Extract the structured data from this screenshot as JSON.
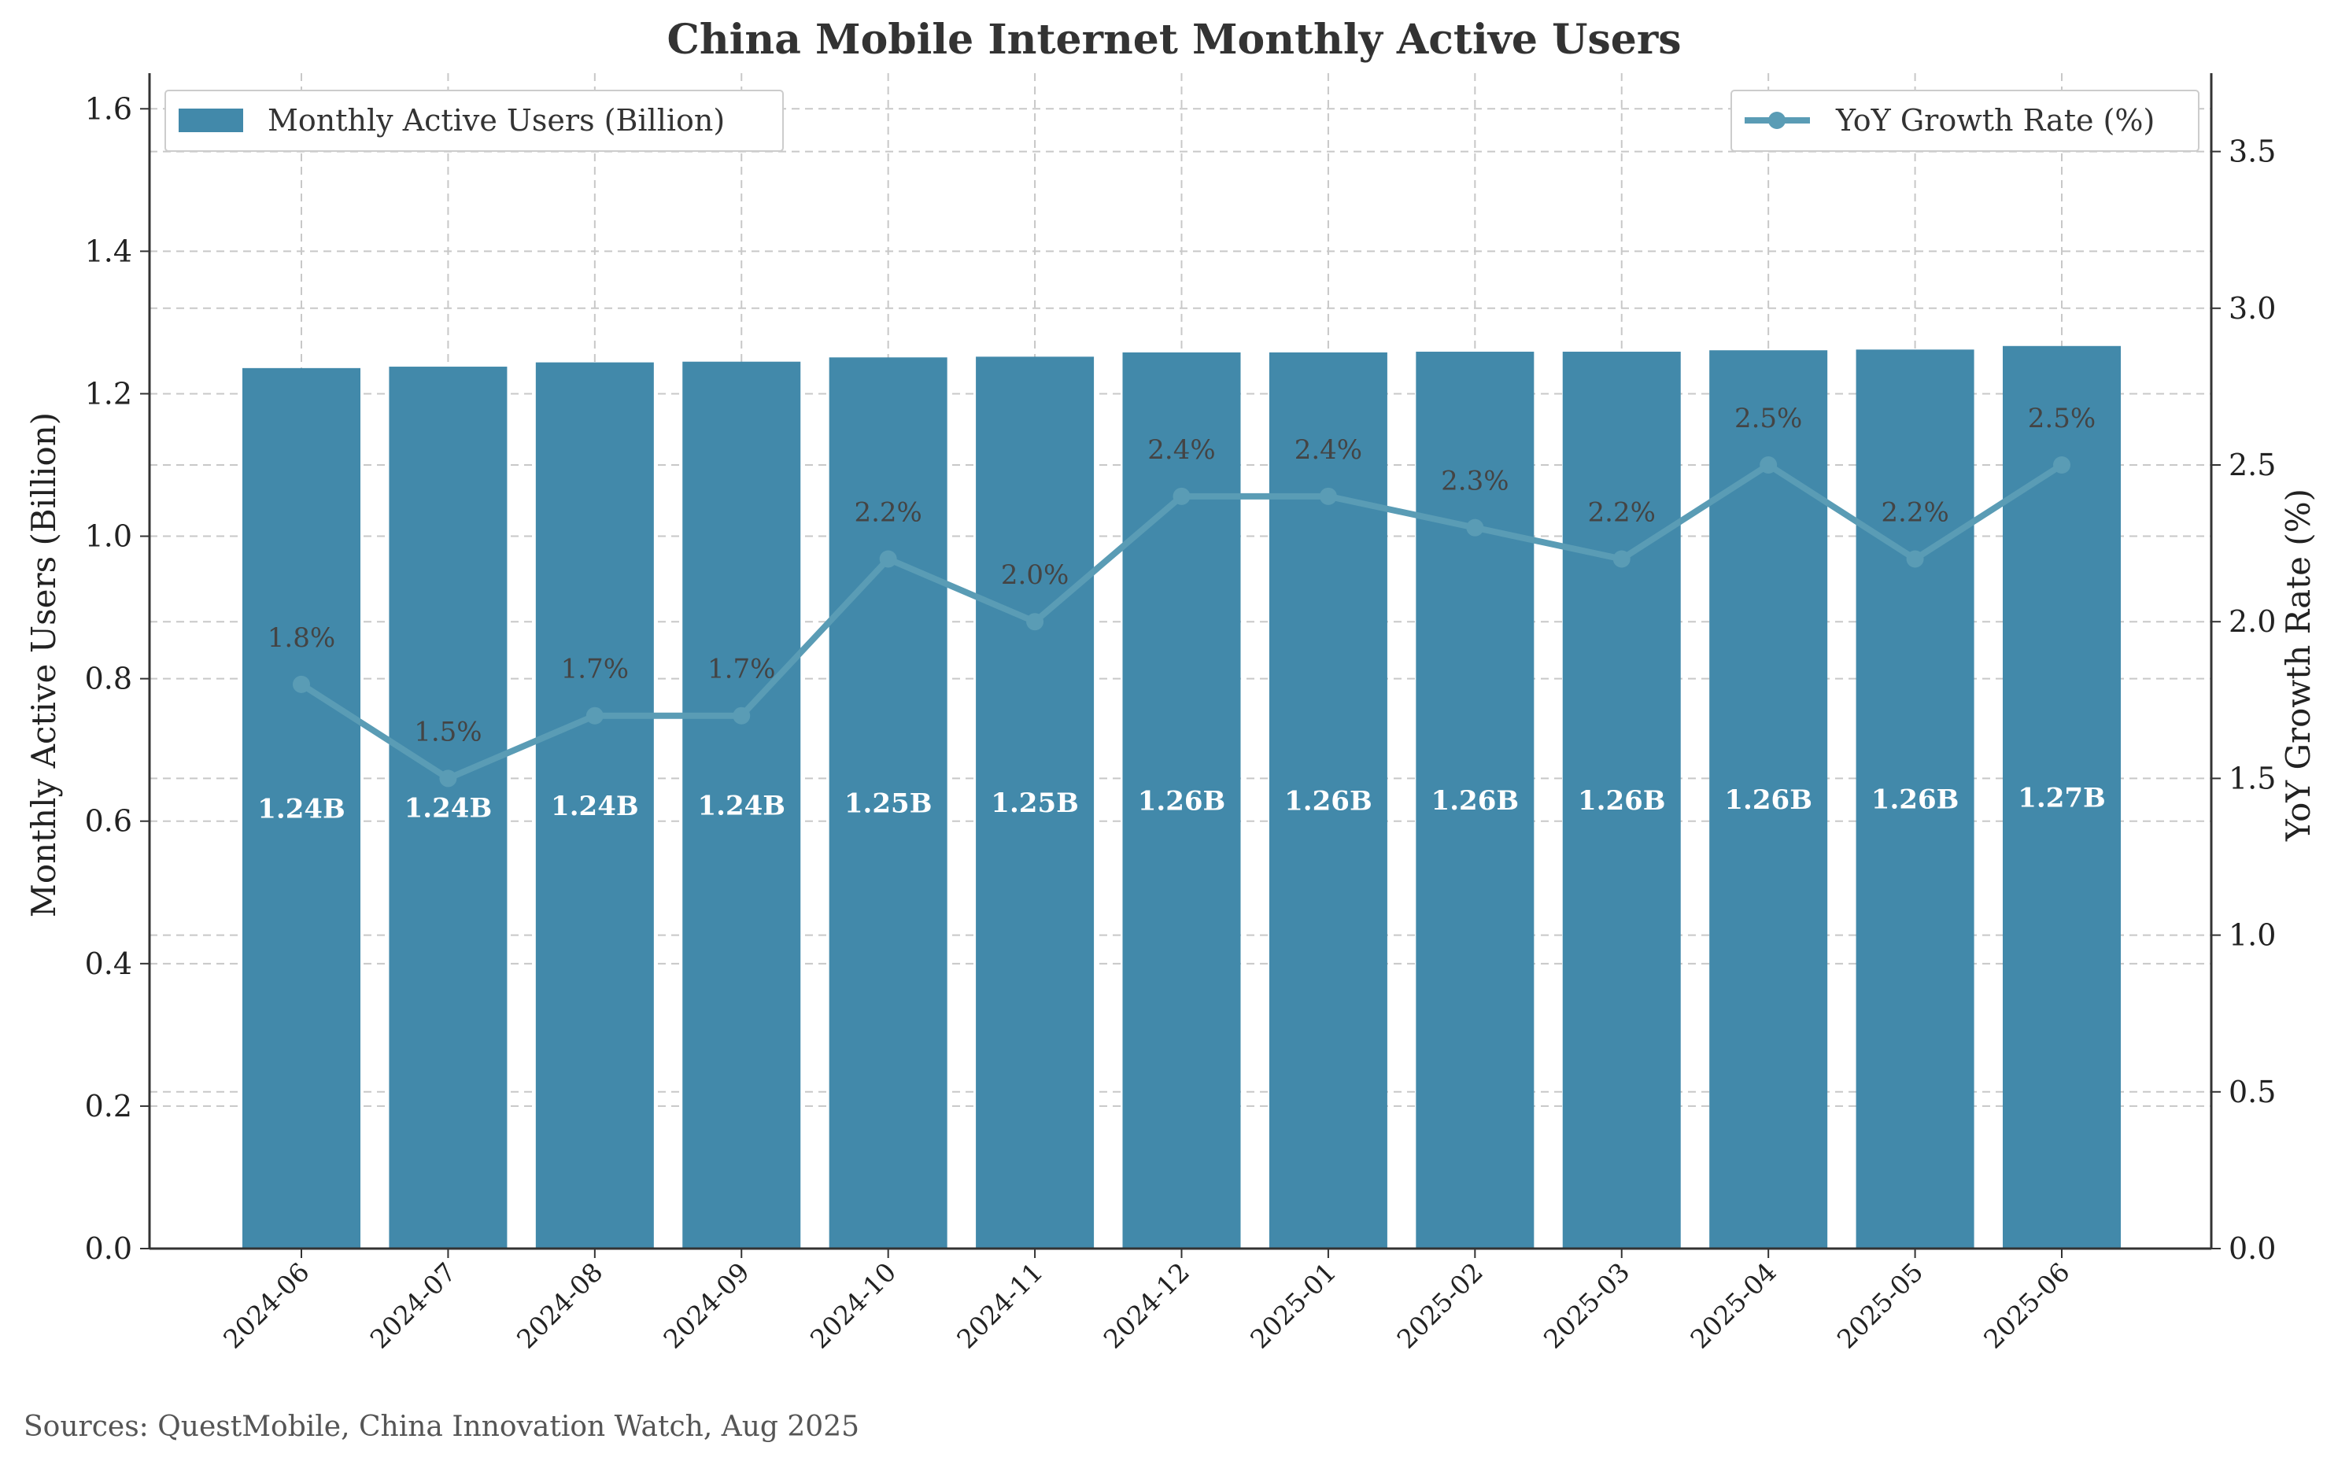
{
  "chart_data": {
    "type": "bar",
    "title": "China Mobile Internet Monthly Active Users",
    "categories": [
      "2024-06",
      "2024-07",
      "2024-08",
      "2024-09",
      "2024-10",
      "2024-11",
      "2024-12",
      "2025-01",
      "2025-02",
      "2025-03",
      "2025-04",
      "2025-05",
      "2025-06"
    ],
    "y_left": {
      "label": "Monthly Active Users (Billion)",
      "lim": [
        0,
        1.65
      ],
      "ticks": [
        0.0,
        0.2,
        0.4,
        0.6,
        0.8,
        1.0,
        1.2,
        1.4,
        1.6
      ],
      "tick_labels": [
        "0.0",
        "0.2",
        "0.4",
        "0.6",
        "0.8",
        "1.0",
        "1.2",
        "1.4",
        "1.6"
      ]
    },
    "y_right": {
      "label": "YoY Growth Rate (%)",
      "lim": [
        0,
        3.75
      ],
      "ticks": [
        0.0,
        0.5,
        1.0,
        1.5,
        2.0,
        2.5,
        3.0,
        3.5
      ],
      "tick_labels": [
        "0.0",
        "0.5",
        "1.0",
        "1.5",
        "2.0",
        "2.5",
        "3.0",
        "3.5"
      ]
    },
    "series": [
      {
        "name": "Monthly Active Users (Billion)",
        "type": "bar",
        "axis": "left",
        "color": "#4289aa",
        "values": [
          1.236,
          1.238,
          1.244,
          1.245,
          1.251,
          1.252,
          1.258,
          1.258,
          1.259,
          1.259,
          1.261,
          1.262,
          1.267
        ],
        "labels": [
          "1.24B",
          "1.24B",
          "1.24B",
          "1.24B",
          "1.25B",
          "1.25B",
          "1.26B",
          "1.26B",
          "1.26B",
          "1.26B",
          "1.26B",
          "1.26B",
          "1.27B"
        ]
      },
      {
        "name": "YoY Growth Rate (%)",
        "type": "line",
        "axis": "right",
        "color": "#5a9cb5",
        "values": [
          1.8,
          1.5,
          1.7,
          1.7,
          2.2,
          2.0,
          2.4,
          2.4,
          2.3,
          2.2,
          2.5,
          2.2,
          2.5
        ],
        "labels": [
          "1.8%",
          "1.5%",
          "1.7%",
          "1.7%",
          "2.2%",
          "2.0%",
          "2.4%",
          "2.4%",
          "2.3%",
          "2.2%",
          "2.5%",
          "2.2%",
          "2.5%"
        ]
      }
    ],
    "grid": true,
    "legend_left": "top-left",
    "legend_right": "top-right"
  },
  "footer": {
    "source": "Sources: QuestMobile, China Innovation Watch, Aug 2025"
  }
}
